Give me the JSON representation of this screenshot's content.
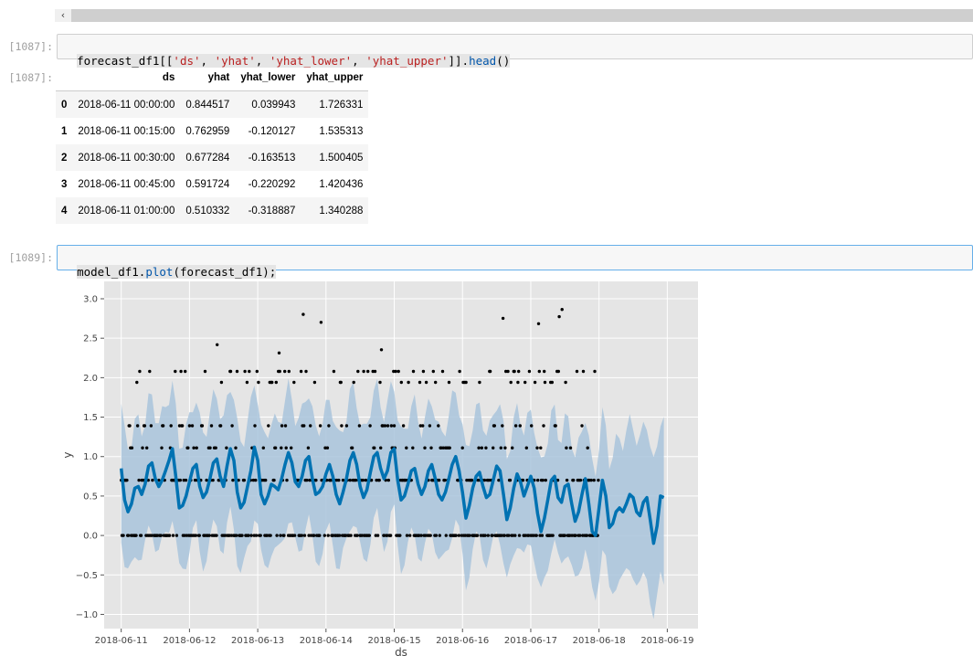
{
  "cells": [
    {
      "in_prompt": "[1087]:",
      "code_tokens": [
        {
          "t": "forecast_df1[[",
          "c": "c-var"
        },
        {
          "t": "'ds'",
          "c": "c-str"
        },
        {
          "t": ", ",
          "c": "c-p"
        },
        {
          "t": "'yhat'",
          "c": "c-str"
        },
        {
          "t": ", ",
          "c": "c-p"
        },
        {
          "t": "'yhat_lower'",
          "c": "c-str"
        },
        {
          "t": ", ",
          "c": "c-p"
        },
        {
          "t": "'yhat_upper'",
          "c": "c-str"
        },
        {
          "t": "]].",
          "c": "c-p"
        },
        {
          "t": "head",
          "c": "c-fn"
        },
        {
          "t": "()",
          "c": "c-p"
        }
      ],
      "out_prompt": "[1087]:",
      "table": {
        "columns": [
          "",
          "ds",
          "yhat",
          "yhat_lower",
          "yhat_upper"
        ],
        "rows": [
          [
            "0",
            "2018-06-11 00:00:00",
            "0.844517",
            "0.039943",
            "1.726331"
          ],
          [
            "1",
            "2018-06-11 00:15:00",
            "0.762959",
            "-0.120127",
            "1.535313"
          ],
          [
            "2",
            "2018-06-11 00:30:00",
            "0.677284",
            "-0.163513",
            "1.500405"
          ],
          [
            "3",
            "2018-06-11 00:45:00",
            "0.591724",
            "-0.220292",
            "1.420436"
          ],
          [
            "4",
            "2018-06-11 01:00:00",
            "0.510332",
            "-0.318887",
            "1.340288"
          ]
        ]
      }
    },
    {
      "in_prompt": "[1089]:",
      "code_tokens": [
        {
          "t": "model_df1.",
          "c": "c-var"
        },
        {
          "t": "plot",
          "c": "c-fn"
        },
        {
          "t": "(forecast_df1);",
          "c": "c-p"
        }
      ]
    }
  ],
  "scroll_arrow": "‹",
  "chart_data": {
    "type": "line",
    "xlabel": "ds",
    "ylabel": "y",
    "ylim": [
      -1.18,
      3.22
    ],
    "xlim": [
      -0.25,
      8.45
    ],
    "yticks": [
      -1.0,
      -0.5,
      0.0,
      0.5,
      1.0,
      1.5,
      2.0,
      2.5,
      3.0
    ],
    "ytick_labels": [
      "−1.0",
      "−0.5",
      "0.0",
      "0.5",
      "1.0",
      "1.5",
      "2.0",
      "2.5",
      "3.0"
    ],
    "xticks": [
      0,
      1,
      2,
      3,
      4,
      5,
      6,
      7,
      8
    ],
    "xtick_labels": [
      "2018-06-11",
      "2018-06-12",
      "2018-06-13",
      "2018-06-14",
      "2018-06-15",
      "2018-06-16",
      "2018-06-17",
      "2018-06-18",
      "2018-06-19"
    ],
    "grid": true,
    "colors": {
      "forecast": "#0072b2",
      "band": "#a9c4dc",
      "observed": "#000000",
      "background": "#e5e5e5",
      "grid": "#ffffff"
    },
    "series": [
      {
        "kind": "forecast_line",
        "x": [
          0,
          0.05,
          0.1,
          0.15,
          0.2,
          0.25,
          0.3,
          0.35,
          0.4,
          0.45,
          0.5,
          0.55,
          0.6,
          0.65,
          0.7,
          0.75,
          0.8,
          0.85,
          0.9,
          0.95,
          1,
          1.05,
          1.1,
          1.15,
          1.2,
          1.25,
          1.3,
          1.35,
          1.4,
          1.45,
          1.5,
          1.55,
          1.6,
          1.65,
          1.7,
          1.75,
          1.8,
          1.85,
          1.9,
          1.95,
          2,
          2.05,
          2.1,
          2.15,
          2.2,
          2.25,
          2.3,
          2.35,
          2.4,
          2.45,
          2.5,
          2.55,
          2.6,
          2.65,
          2.7,
          2.75,
          2.8,
          2.85,
          2.9,
          2.95,
          3,
          3.05,
          3.1,
          3.15,
          3.2,
          3.25,
          3.3,
          3.35,
          3.4,
          3.45,
          3.5,
          3.55,
          3.6,
          3.65,
          3.7,
          3.75,
          3.8,
          3.85,
          3.9,
          3.95,
          4,
          4.05,
          4.1,
          4.15,
          4.2,
          4.25,
          4.3,
          4.35,
          4.4,
          4.45,
          4.5,
          4.55,
          4.6,
          4.65,
          4.7,
          4.75,
          4.8,
          4.85,
          4.9,
          4.95,
          5,
          5.05,
          5.1,
          5.15,
          5.2,
          5.25,
          5.3,
          5.35,
          5.4,
          5.45,
          5.5,
          5.55,
          5.6,
          5.65,
          5.7,
          5.75,
          5.8,
          5.85,
          5.9,
          5.95,
          6,
          6.05,
          6.1,
          6.15,
          6.2,
          6.25,
          6.3,
          6.35,
          6.4,
          6.45,
          6.5,
          6.55,
          6.6,
          6.65,
          6.7,
          6.75,
          6.8,
          6.85,
          6.9,
          6.95,
          7,
          7.05,
          7.1,
          7.15,
          7.2,
          7.25,
          7.3,
          7.35,
          7.4,
          7.45,
          7.5,
          7.55,
          7.6,
          7.65,
          7.7,
          7.75,
          7.8,
          7.85,
          7.9,
          7.95
        ],
        "y": [
          0.85,
          0.45,
          0.3,
          0.4,
          0.6,
          0.62,
          0.52,
          0.65,
          0.88,
          0.92,
          0.72,
          0.62,
          0.7,
          0.82,
          0.95,
          1.1,
          0.75,
          0.35,
          0.38,
          0.5,
          0.68,
          0.85,
          0.9,
          0.62,
          0.48,
          0.55,
          0.72,
          0.92,
          0.97,
          0.75,
          0.62,
          0.88,
          1.1,
          0.95,
          0.55,
          0.35,
          0.42,
          0.62,
          0.82,
          1.12,
          0.95,
          0.52,
          0.4,
          0.5,
          0.65,
          0.62,
          0.58,
          0.72,
          0.9,
          1.05,
          0.92,
          0.68,
          0.62,
          0.75,
          0.95,
          1.0,
          0.72,
          0.52,
          0.55,
          0.62,
          0.78,
          0.9,
          0.75,
          0.52,
          0.4,
          0.55,
          0.72,
          0.95,
          1.05,
          0.9,
          0.62,
          0.48,
          0.58,
          0.8,
          1.0,
          1.05,
          0.85,
          0.72,
          0.82,
          1.05,
          1.1,
          0.7,
          0.45,
          0.5,
          0.65,
          0.82,
          0.85,
          0.65,
          0.52,
          0.62,
          0.82,
          0.9,
          0.72,
          0.52,
          0.45,
          0.55,
          0.72,
          0.9,
          1.0,
          0.82,
          0.55,
          0.22,
          0.38,
          0.6,
          0.75,
          0.8,
          0.62,
          0.48,
          0.52,
          0.7,
          0.88,
          0.82,
          0.52,
          0.2,
          0.35,
          0.6,
          0.78,
          0.68,
          0.5,
          0.62,
          0.75,
          0.6,
          0.28,
          0.05,
          0.22,
          0.45,
          0.7,
          0.75,
          0.48,
          0.42,
          0.62,
          0.65,
          0.4,
          0.18,
          0.3,
          0.52,
          0.72,
          0.4,
          0.05,
          0.0,
          0.35,
          0.7,
          0.5,
          0.1,
          0.15,
          0.3,
          0.35,
          0.3,
          0.4,
          0.52,
          0.48,
          0.3,
          0.25,
          0.42,
          0.48,
          0.2,
          -0.1,
          0.12,
          0.5,
          0.48
        ]
      }
    ]
  }
}
